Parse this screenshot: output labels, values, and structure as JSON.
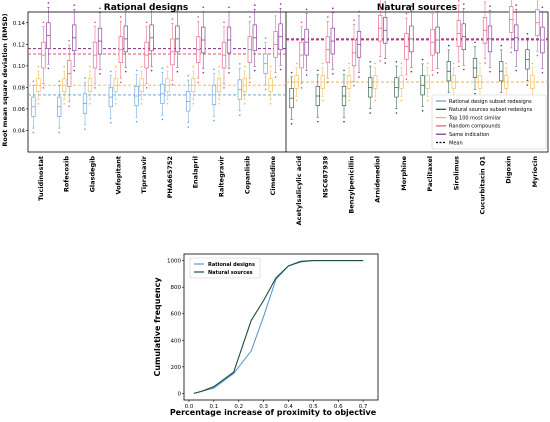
{
  "chart_data": [
    {
      "type": "box",
      "panels": [
        {
          "title": "Rational designs",
          "categories": [
            "Tucidinostat",
            "Rofecoxib",
            "Glasdegib",
            "Vofopitant",
            "Tipranavir",
            "PHA665752",
            "Enalapril",
            "Raltegravir",
            "Copanlisib",
            "Cimetidine"
          ],
          "series": [
            {
              "name": "Rational design subset redesigns",
              "median": [
                0.062,
                0.062,
                0.065,
                0.071,
                0.072,
                0.074,
                0.067,
                0.073,
                0.078,
                0.102
              ]
            },
            {
              "name": "Top 100 most similar",
              "median": [
                0.082,
                0.082,
                0.082,
                0.082,
                0.082,
                0.082,
                0.082,
                0.082,
                0.082,
                0.082
              ]
            },
            {
              "name": "Random compounds",
              "median": [
                0.11,
                0.093,
                0.11,
                0.115,
                0.11,
                0.113,
                0.115,
                0.11,
                0.115,
                0.12
              ]
            },
            {
              "name": "Same indication",
              "median": [
                0.128,
                0.126,
                0.123,
                0.125,
                0.126,
                0.125,
                0.124,
                0.124,
                0.126,
                0.127
              ]
            }
          ],
          "mean_lines": {
            "Rational design subset redesigns": 0.073,
            "Top 100 most similar": 0.082,
            "Random compounds": 0.111,
            "Same indication": 0.116
          }
        },
        {
          "title": "Natural sources",
          "categories": [
            "Acetylsalicylic acid",
            "NSC687939",
            "Benzylpenicillin",
            "Arnidenediol",
            "Morphine",
            "Paclitaxel",
            "Sirolimus",
            "Cucurbitacin Q1",
            "Digoxin",
            "Myriocin"
          ],
          "series": [
            {
              "name": "Natural sources subset redesigns",
              "median": [
                0.07,
                0.072,
                0.072,
                0.08,
                0.08,
                0.082,
                0.095,
                0.098,
                0.095,
                0.106
              ]
            },
            {
              "name": "Top 100 most similar",
              "median": [
                0.085,
                0.085,
                0.085,
                0.085,
                0.085,
                0.085,
                0.085,
                0.085,
                0.085,
                0.085
              ]
            },
            {
              "name": "Random compounds",
              "median": [
                0.11,
                0.115,
                0.112,
                0.135,
                0.118,
                0.122,
                0.13,
                0.133,
                0.143,
                0.14
              ]
            },
            {
              "name": "Same indication",
              "median": [
                0.122,
                0.123,
                0.12,
                0.133,
                0.125,
                0.124,
                0.127,
                0.125,
                0.126,
                0.124
              ]
            }
          ],
          "mean_lines": {
            "Natural sources subset redesigns": 0.085,
            "Top 100 most similar": 0.085,
            "Random compounds": 0.124,
            "Same indication": 0.125
          }
        }
      ],
      "ylabel": "Root mean square deviation (RMSD)",
      "ylim": [
        0.02,
        0.15
      ],
      "yticks": [
        "0.04",
        "0.06",
        "0.08",
        "0.10",
        "0.12",
        "0.14"
      ],
      "legend": {
        "placement": "lower-right",
        "entries": [
          {
            "label": "Rational design subset redesigns",
            "color": "#5b9bd5"
          },
          {
            "label": "Natural sources subset redesigns",
            "color": "#1f4e3d"
          },
          {
            "label": "Top 100 most similar",
            "color": "#f5b342"
          },
          {
            "label": "Random compounds",
            "color": "#e0547a"
          },
          {
            "label": "Same indication",
            "color": "#7b2a8a"
          },
          {
            "label": "Mean",
            "color": "#000000",
            "dashed": true
          }
        ]
      },
      "colors": {
        "rational": "#5b9bd5",
        "natural": "#1f4e3d",
        "top100": "#f5b342",
        "random": "#e0547a",
        "same": "#7b2a8a"
      }
    },
    {
      "type": "line",
      "xlabel": "Percentage increase of proximity to objective",
      "ylabel": "Cumulative frequency",
      "xlim": [
        -0.02,
        0.76
      ],
      "ylim": [
        -50,
        1050
      ],
      "xticks": [
        "0.0",
        "0.1",
        "0.2",
        "0.3",
        "0.4",
        "0.5",
        "0.6",
        "0.7"
      ],
      "yticks": [
        "0",
        "200",
        "400",
        "600",
        "800",
        "1000"
      ],
      "legend": {
        "placement": "top-left"
      },
      "series": [
        {
          "name": "Rational designs",
          "color": "#5b9bd5",
          "x": [
            0.02,
            0.05,
            0.1,
            0.18,
            0.25,
            0.3,
            0.35,
            0.4,
            0.45,
            0.5,
            0.6,
            0.7
          ],
          "y": [
            0,
            15,
            40,
            150,
            320,
            580,
            860,
            960,
            990,
            1000,
            1000,
            1000
          ]
        },
        {
          "name": "Natural sources",
          "color": "#1f4e3d",
          "x": [
            0.02,
            0.05,
            0.1,
            0.18,
            0.25,
            0.3,
            0.35,
            0.4,
            0.45,
            0.5,
            0.6,
            0.7
          ],
          "y": [
            0,
            15,
            50,
            160,
            550,
            700,
            870,
            960,
            995,
            1000,
            1000,
            1000
          ]
        }
      ]
    }
  ]
}
